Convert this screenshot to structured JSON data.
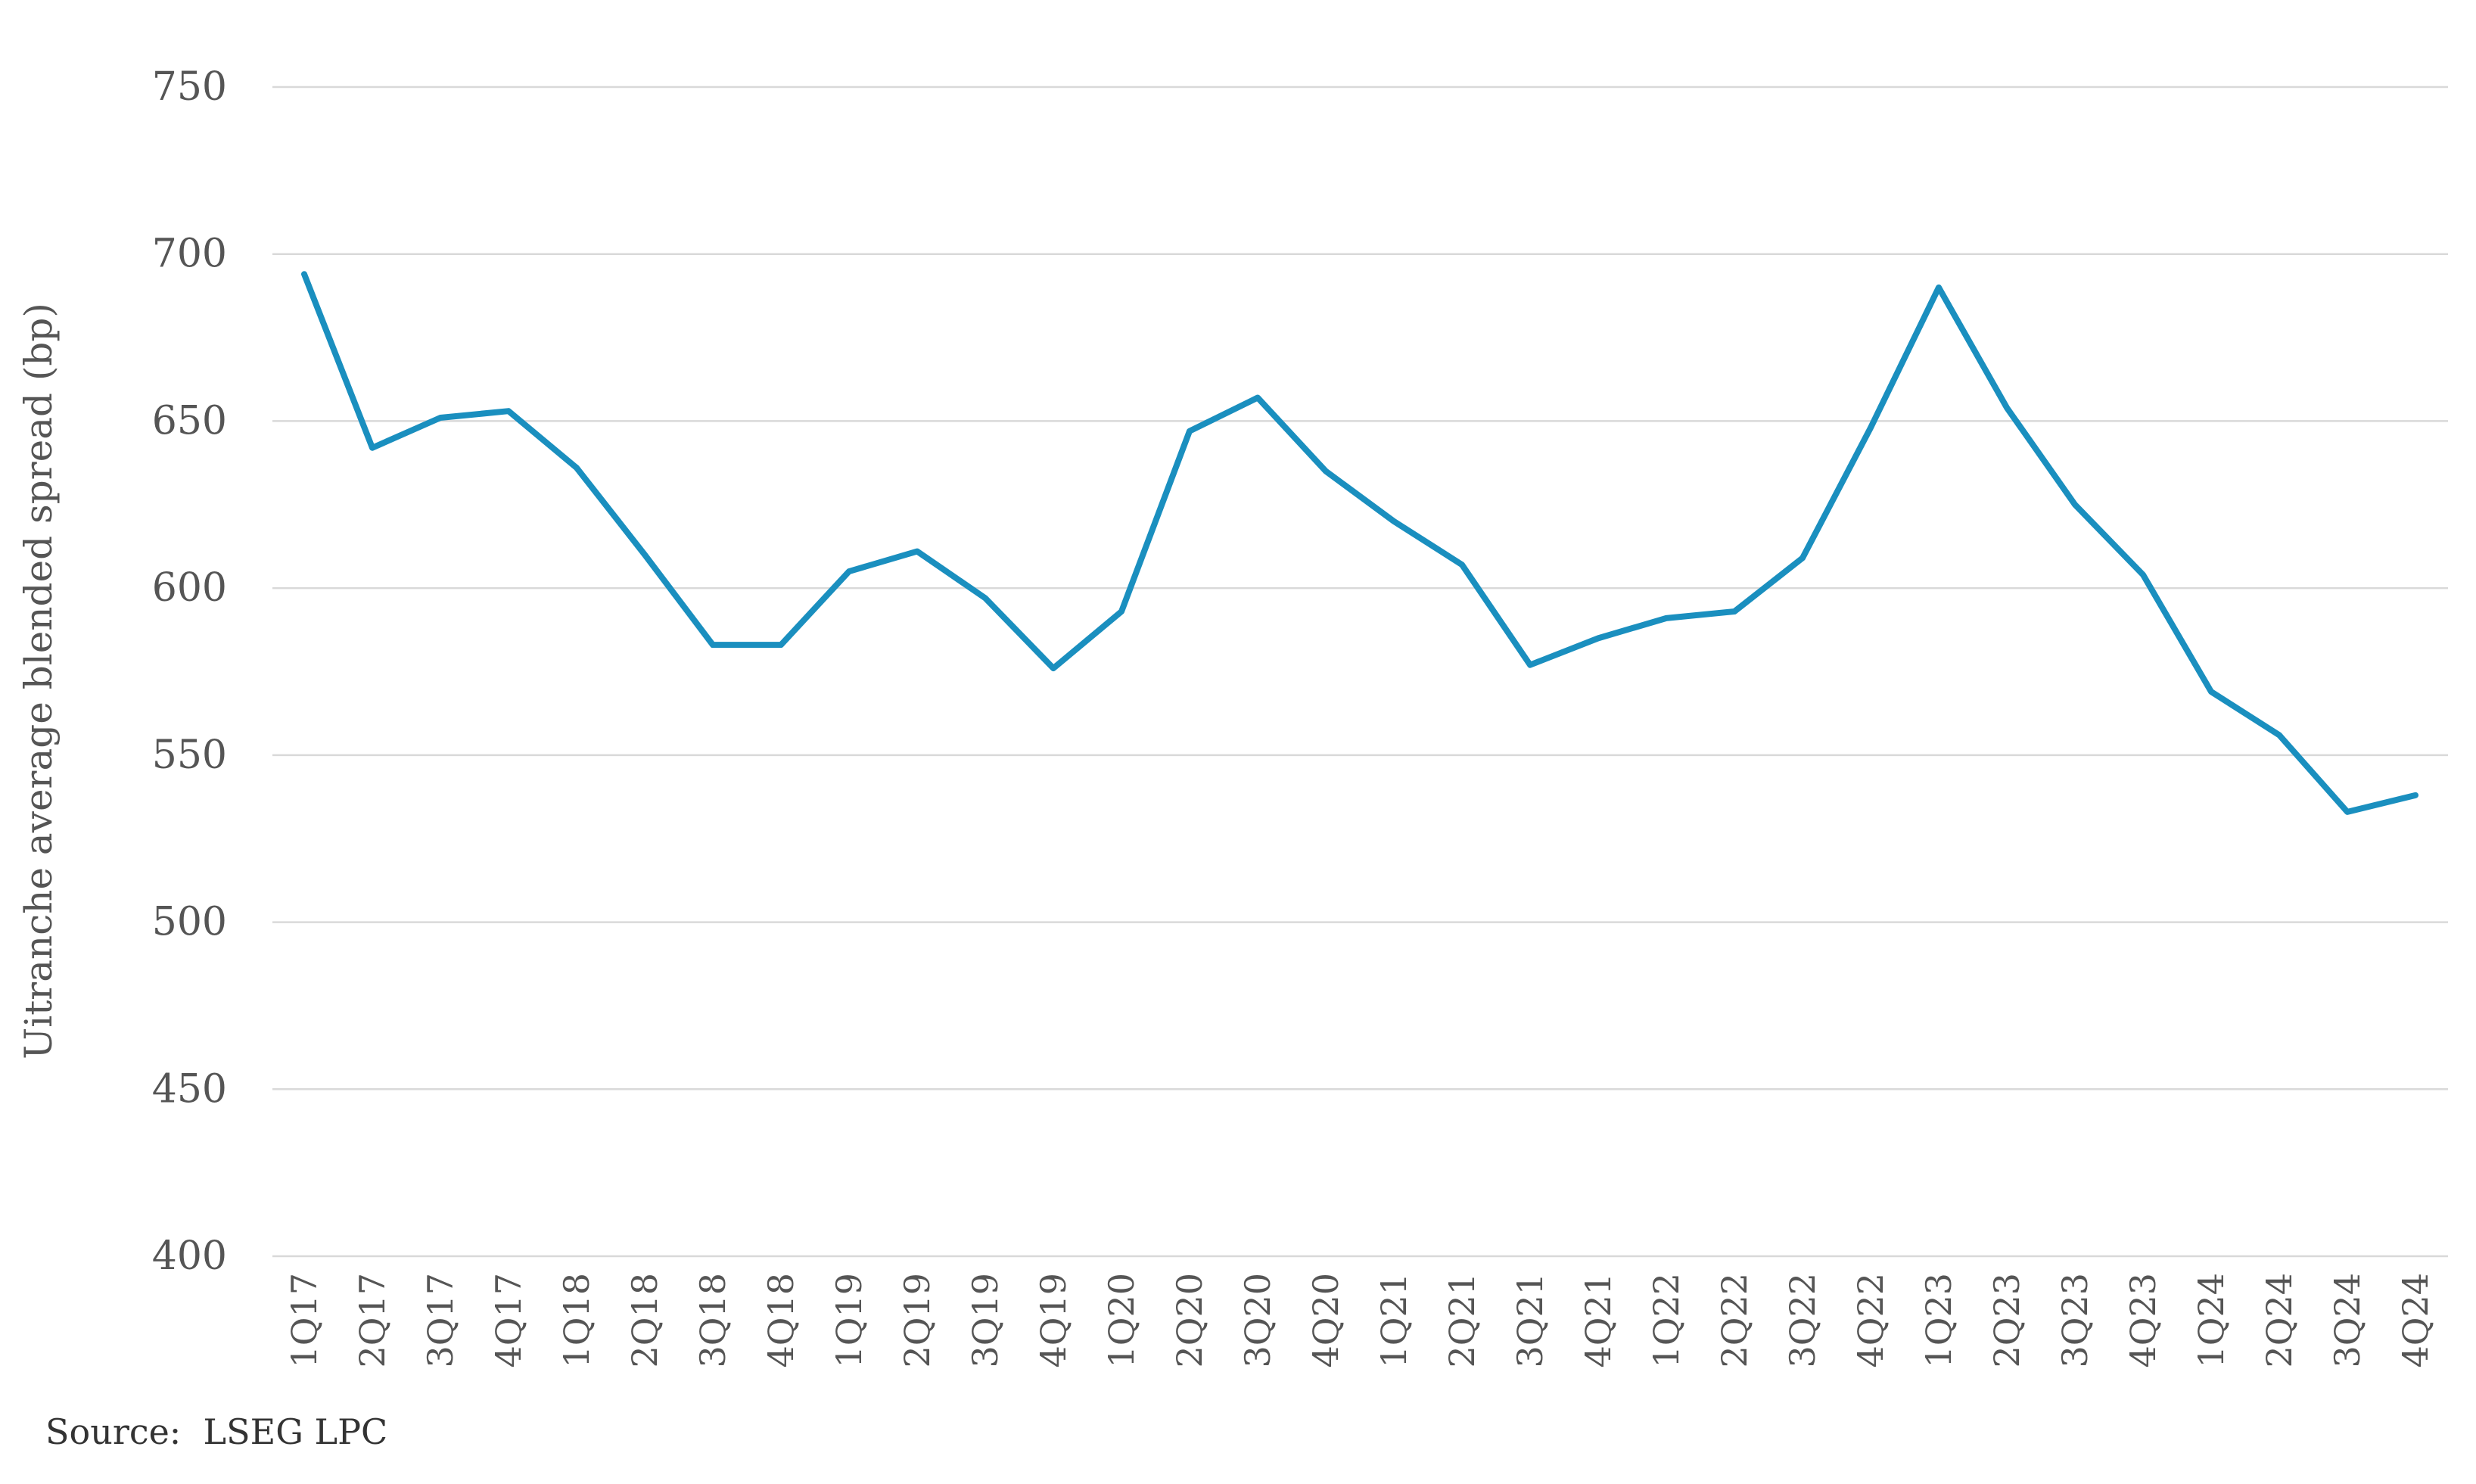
{
  "chart_data": {
    "type": "line",
    "ylabel": "Uitranche average blended spread (bp)",
    "xlabel": "",
    "ylim": [
      400,
      750
    ],
    "yticks": [
      400,
      450,
      500,
      550,
      600,
      650,
      700,
      750
    ],
    "grid": true,
    "legend": "none",
    "categories": [
      "1Q17",
      "2Q17",
      "3Q17",
      "4Q17",
      "1Q18",
      "2Q18",
      "3Q18",
      "4Q18",
      "1Q19",
      "2Q19",
      "3Q19",
      "4Q19",
      "1Q20",
      "2Q20",
      "3Q20",
      "4Q20",
      "1Q21",
      "2Q21",
      "3Q21",
      "4Q21",
      "1Q22",
      "2Q22",
      "3Q22",
      "4Q22",
      "1Q23",
      "2Q23",
      "3Q23",
      "4Q23",
      "1Q24",
      "2Q24",
      "3Q24",
      "4Q24"
    ],
    "series": [
      {
        "values": [
          694,
          642,
          651,
          653,
          636,
          610,
          583,
          583,
          605,
          611,
          597,
          576,
          593,
          647,
          657,
          635,
          620,
          607,
          577,
          585,
          591,
          593,
          609,
          648,
          690,
          654,
          625,
          604,
          569,
          556,
          533,
          538
        ],
        "color": "#1a8fbf"
      }
    ],
    "colors": {
      "line": "#1a8fbf",
      "grid": "#d9d9d9",
      "text": "#555555"
    }
  },
  "source": "Source:  LSEG LPC"
}
